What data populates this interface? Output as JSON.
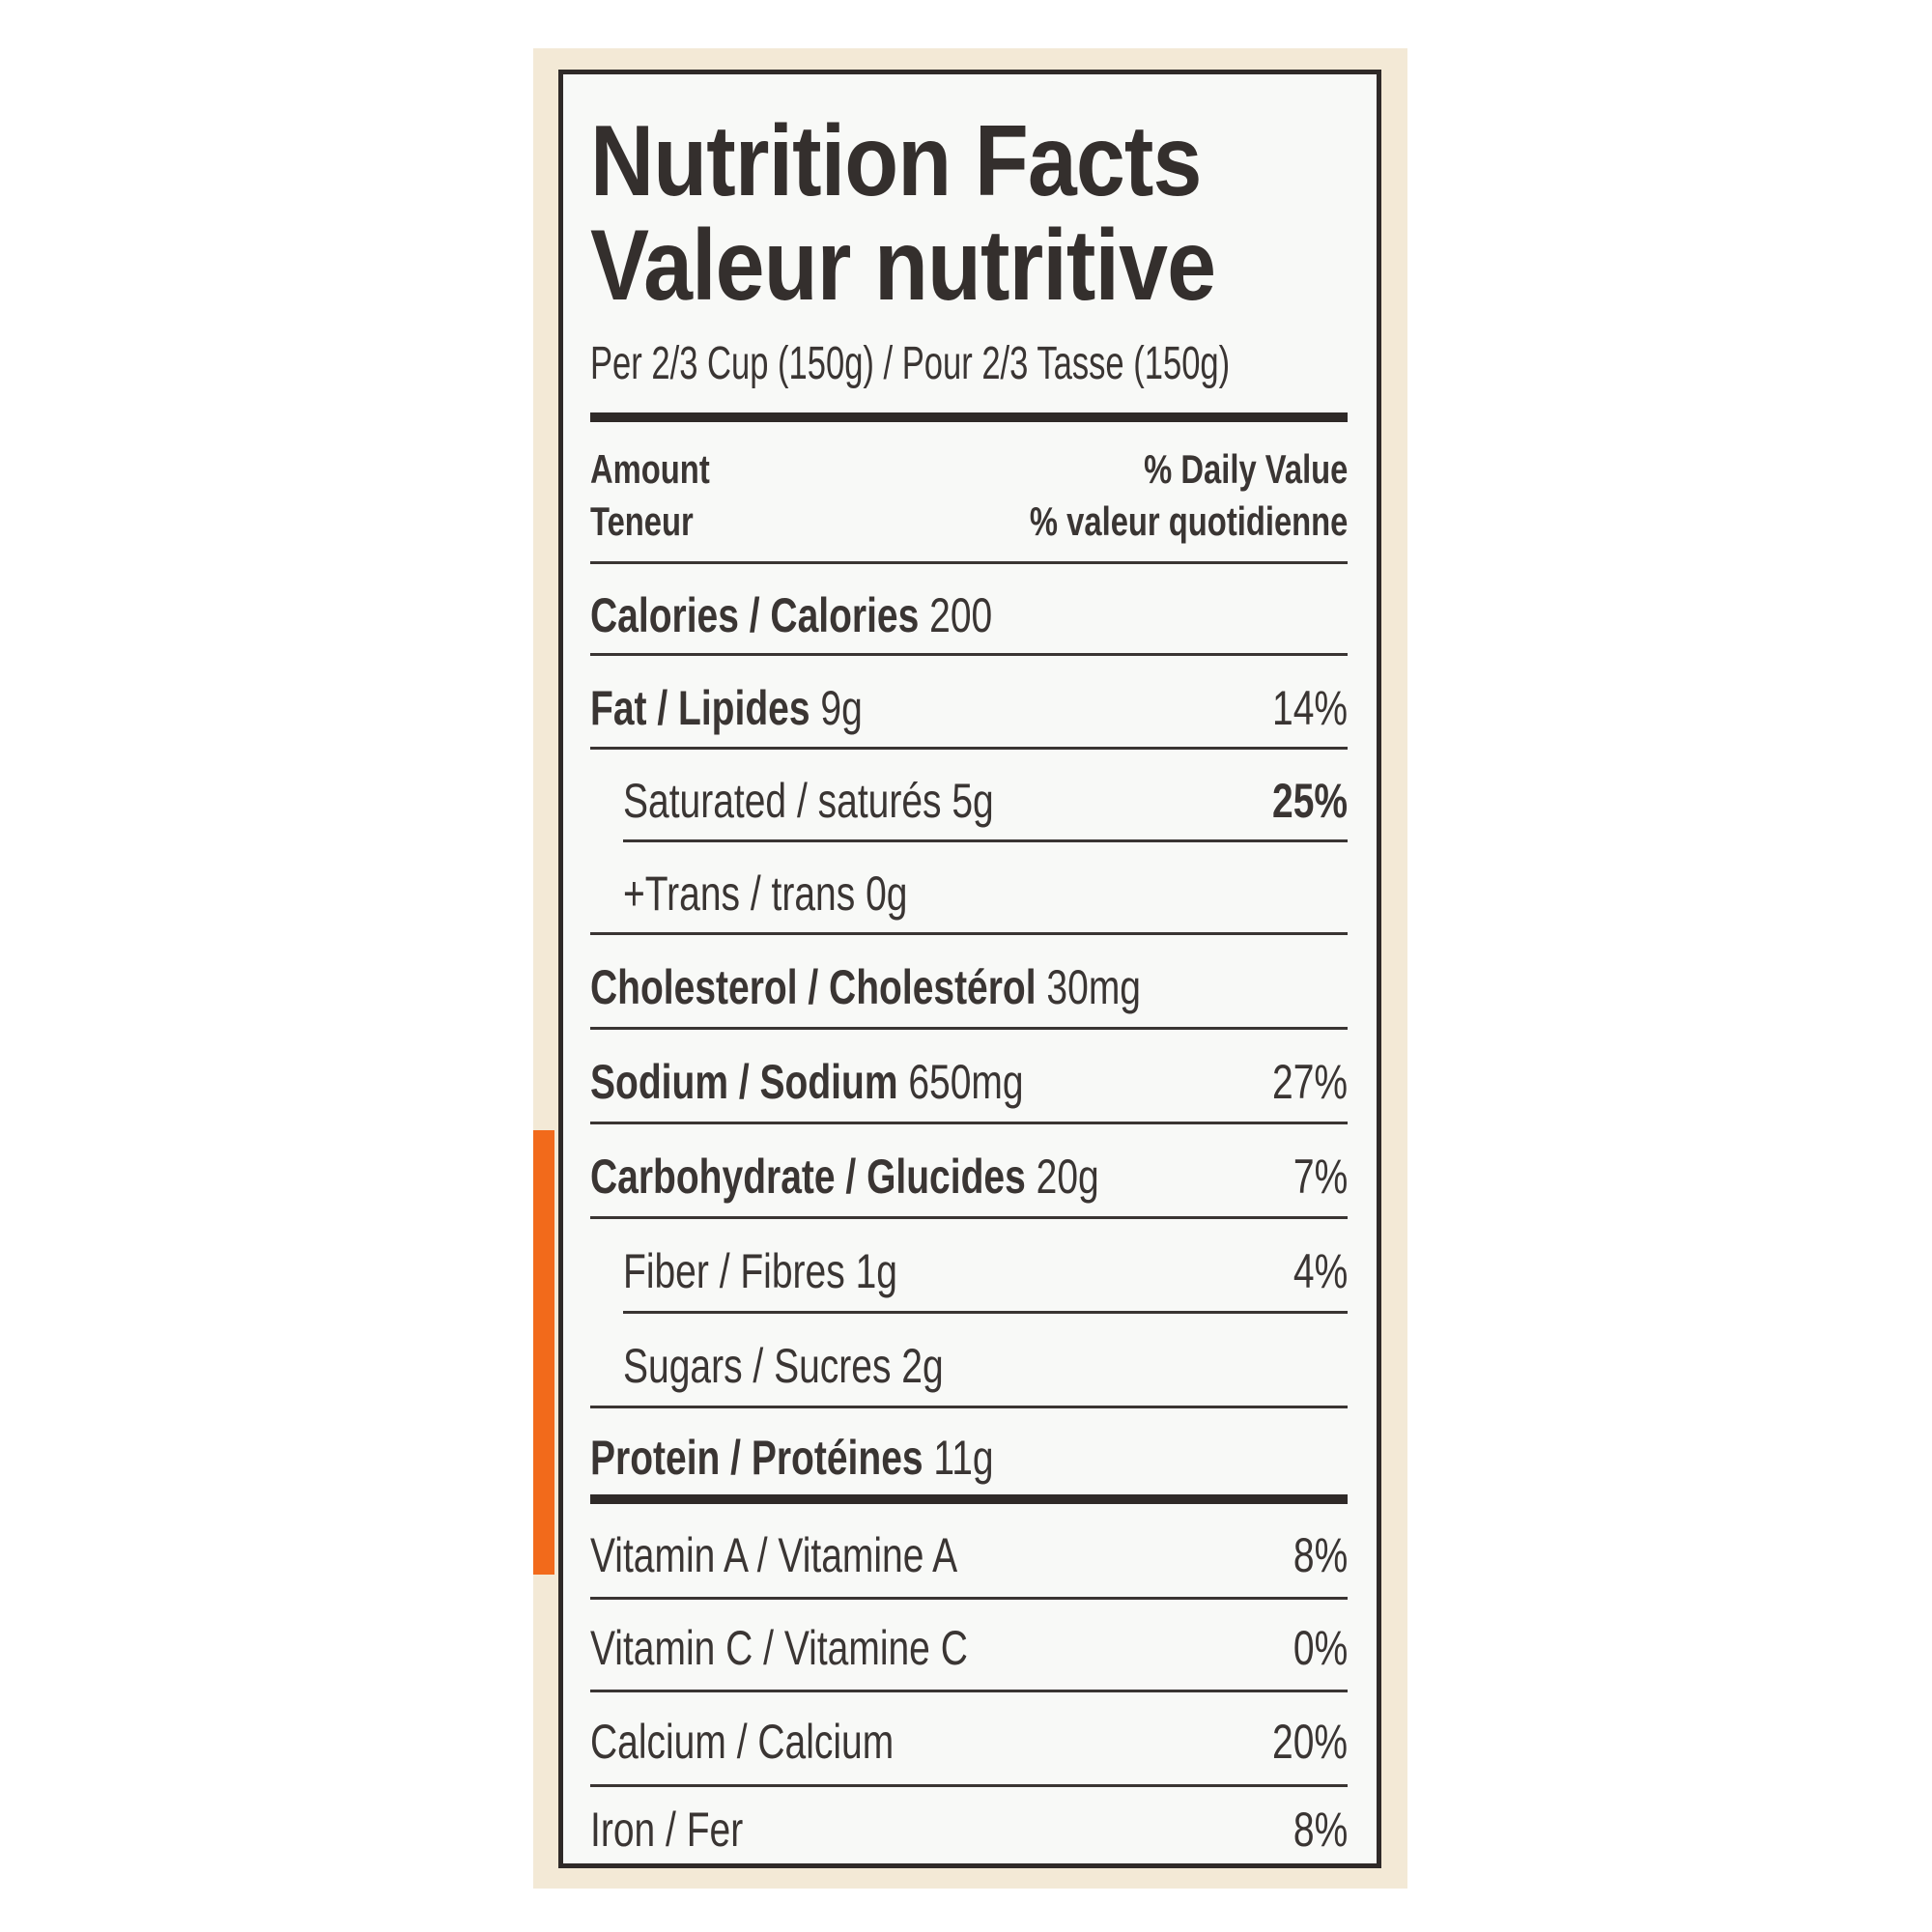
{
  "title_en": "Nutrition Facts",
  "title_fr": "Valeur nutritive",
  "serving": "Per 2/3 Cup (150g) / Pour 2/3 Tasse (150g)",
  "header": {
    "amount_en": "Amount",
    "amount_fr": "Teneur",
    "dv_en": "% Daily Value",
    "dv_fr": "% valeur quotidienne"
  },
  "rows": [
    {
      "label": "Calories / Calories",
      "amount": "200",
      "dv": ""
    },
    {
      "label": "Fat / Lipides",
      "amount": "9g",
      "dv": "14%"
    },
    {
      "label": "Saturated / saturés",
      "amount": "5g",
      "dv": "25%"
    },
    {
      "label": "+Trans / trans",
      "amount": "0g",
      "dv": ""
    },
    {
      "label": "Cholesterol / Cholestérol",
      "amount": "30mg",
      "dv": ""
    },
    {
      "label": "Sodium / Sodium",
      "amount": "650mg",
      "dv": "27%"
    },
    {
      "label": "Carbohydrate / Glucides",
      "amount": "20g",
      "dv": "7%"
    },
    {
      "label": "Fiber / Fibres",
      "amount": "1g",
      "dv": "4%"
    },
    {
      "label": "Sugars / Sucres",
      "amount": "2g",
      "dv": ""
    },
    {
      "label": "Protein / Protéines",
      "amount": "11g",
      "dv": ""
    }
  ],
  "vitamins": [
    {
      "label": "Vitamin A / Vitamine A",
      "dv": "8%"
    },
    {
      "label": "Vitamin C / Vitamine C",
      "dv": "0%"
    },
    {
      "label": "Calcium / Calcium",
      "dv": "20%"
    },
    {
      "label": "Iron / Fer",
      "dv": "8%"
    }
  ],
  "colors": {
    "ink": "#3a3533",
    "accent_strip": "#f26a1b",
    "package": "#f3e9d6"
  }
}
